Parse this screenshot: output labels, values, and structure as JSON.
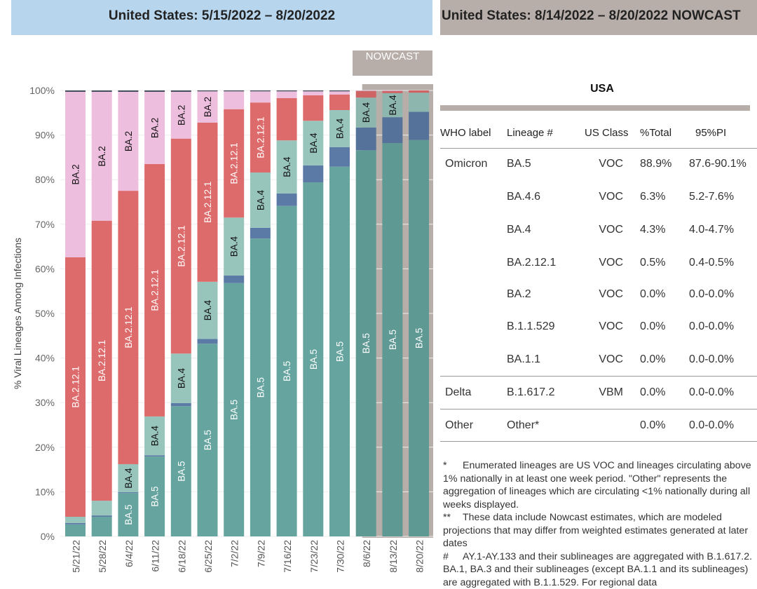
{
  "header": {
    "left_title": "United States: 5/15/2022 – 8/20/2022",
    "right_title": "United States: 8/14/2022 – 8/20/2022 NOWCAST"
  },
  "chart_data": {
    "type": "bar",
    "stacked": true,
    "ylabel": "% Viral Lineages Among Infections",
    "ylim": [
      0,
      100
    ],
    "yticks": [
      "0%",
      "10%",
      "20%",
      "30%",
      "40%",
      "50%",
      "60%",
      "70%",
      "80%",
      "90%",
      "100%"
    ],
    "grid": true,
    "nowcast_label": "NOWCAST",
    "nowcast_from": "8/6/22",
    "categories": [
      "5/21/22",
      "5/28/22",
      "6/4/22",
      "6/11/22",
      "6/18/22",
      "6/25/22",
      "7/2/22",
      "7/9/22",
      "7/16/22",
      "7/23/22",
      "7/30/22",
      "8/6/22",
      "8/13/22",
      "8/20/22"
    ],
    "series": [
      {
        "name": "BA.5",
        "color": "#66a59f",
        "label_color": "#ffffff",
        "values": [
          2.7,
          4.4,
          9.7,
          17.9,
          29.2,
          43.2,
          56.8,
          66.8,
          74.1,
          79.4,
          82.9,
          86.6,
          88.2,
          88.9
        ]
      },
      {
        "name": "BA.4.6",
        "color": "#5b7ba6",
        "label_color": "#ffffff",
        "values": [
          0.3,
          0.3,
          0.2,
          0.3,
          0.7,
          1.1,
          1.7,
          2.4,
          2.8,
          3.8,
          4.4,
          5.1,
          5.8,
          6.3
        ]
      },
      {
        "name": "BA.4",
        "color": "#97c4bb",
        "label_color": "#111111",
        "values": [
          1.4,
          3.3,
          6.3,
          8.7,
          11.1,
          12.8,
          13.0,
          12.4,
          11.9,
          10.0,
          8.3,
          6.7,
          5.4,
          4.3
        ]
      },
      {
        "name": "BA.2.12.1",
        "color": "#de6b6b",
        "label_color": "#ffffff",
        "values": [
          58.2,
          62.8,
          61.3,
          56.6,
          48.2,
          35.7,
          24.3,
          15.7,
          9.5,
          5.7,
          3.5,
          1.5,
          0.5,
          0.5
        ]
      },
      {
        "name": "BA.2",
        "color": "#eebedf",
        "label_color": "#111111",
        "values": [
          37.1,
          28.9,
          22.2,
          16.2,
          10.5,
          7.0,
          4.0,
          2.5,
          1.5,
          0.9,
          0.7,
          0.1,
          0.1,
          0.0
        ]
      },
      {
        "name": "Other",
        "color": "#3d4657",
        "label_color": "#ffffff",
        "values": [
          0.3,
          0.3,
          0.3,
          0.3,
          0.3,
          0.2,
          0.2,
          0.2,
          0.2,
          0.2,
          0.2,
          0.0,
          0.0,
          0.0
        ]
      }
    ]
  },
  "table": {
    "region": "USA",
    "headers": [
      "WHO label",
      "Lineage #",
      "US Class",
      "%Total",
      "95%PI"
    ],
    "rows": [
      [
        "Omicron",
        "BA.5",
        "VOC",
        "88.9%",
        "87.6-90.1%"
      ],
      [
        "",
        "BA.4.6",
        "VOC",
        "6.3%",
        "5.2-7.6%"
      ],
      [
        "",
        "BA.4",
        "VOC",
        "4.3%",
        "4.0-4.7%"
      ],
      [
        "",
        "BA.2.12.1",
        "VOC",
        "0.5%",
        "0.4-0.5%"
      ],
      [
        "",
        "BA.2",
        "VOC",
        "0.0%",
        "0.0-0.0%"
      ],
      [
        "",
        "B.1.1.529",
        "VOC",
        "0.0%",
        "0.0-0.0%"
      ],
      [
        "",
        "BA.1.1",
        "VOC",
        "0.0%",
        "0.0-0.0%"
      ],
      [
        "Delta",
        "B.1.617.2",
        "VBM",
        "0.0%",
        "0.0-0.0%"
      ],
      [
        "Other",
        "Other*",
        "",
        "0.0%",
        "0.0-0.0%"
      ]
    ]
  },
  "notes": [
    {
      "mark": "*",
      "text": "Enumerated lineages are US VOC and lineages circulating above 1% nationally in at least one week period. \"Other\" represents the aggregation of lineages which are circulating <1% nationally during all weeks displayed."
    },
    {
      "mark": "**",
      "text": "These data include Nowcast estimates, which are modeled projections that may differ from weighted estimates generated at later dates"
    },
    {
      "mark": "#",
      "text": "AY.1-AY.133 and their sublineages are aggregated with B.1.617.2. BA.1, BA.3 and their sublineages (except BA.1.1 and its sublineages) are aggregated with B.1.1.529. For regional data"
    }
  ]
}
